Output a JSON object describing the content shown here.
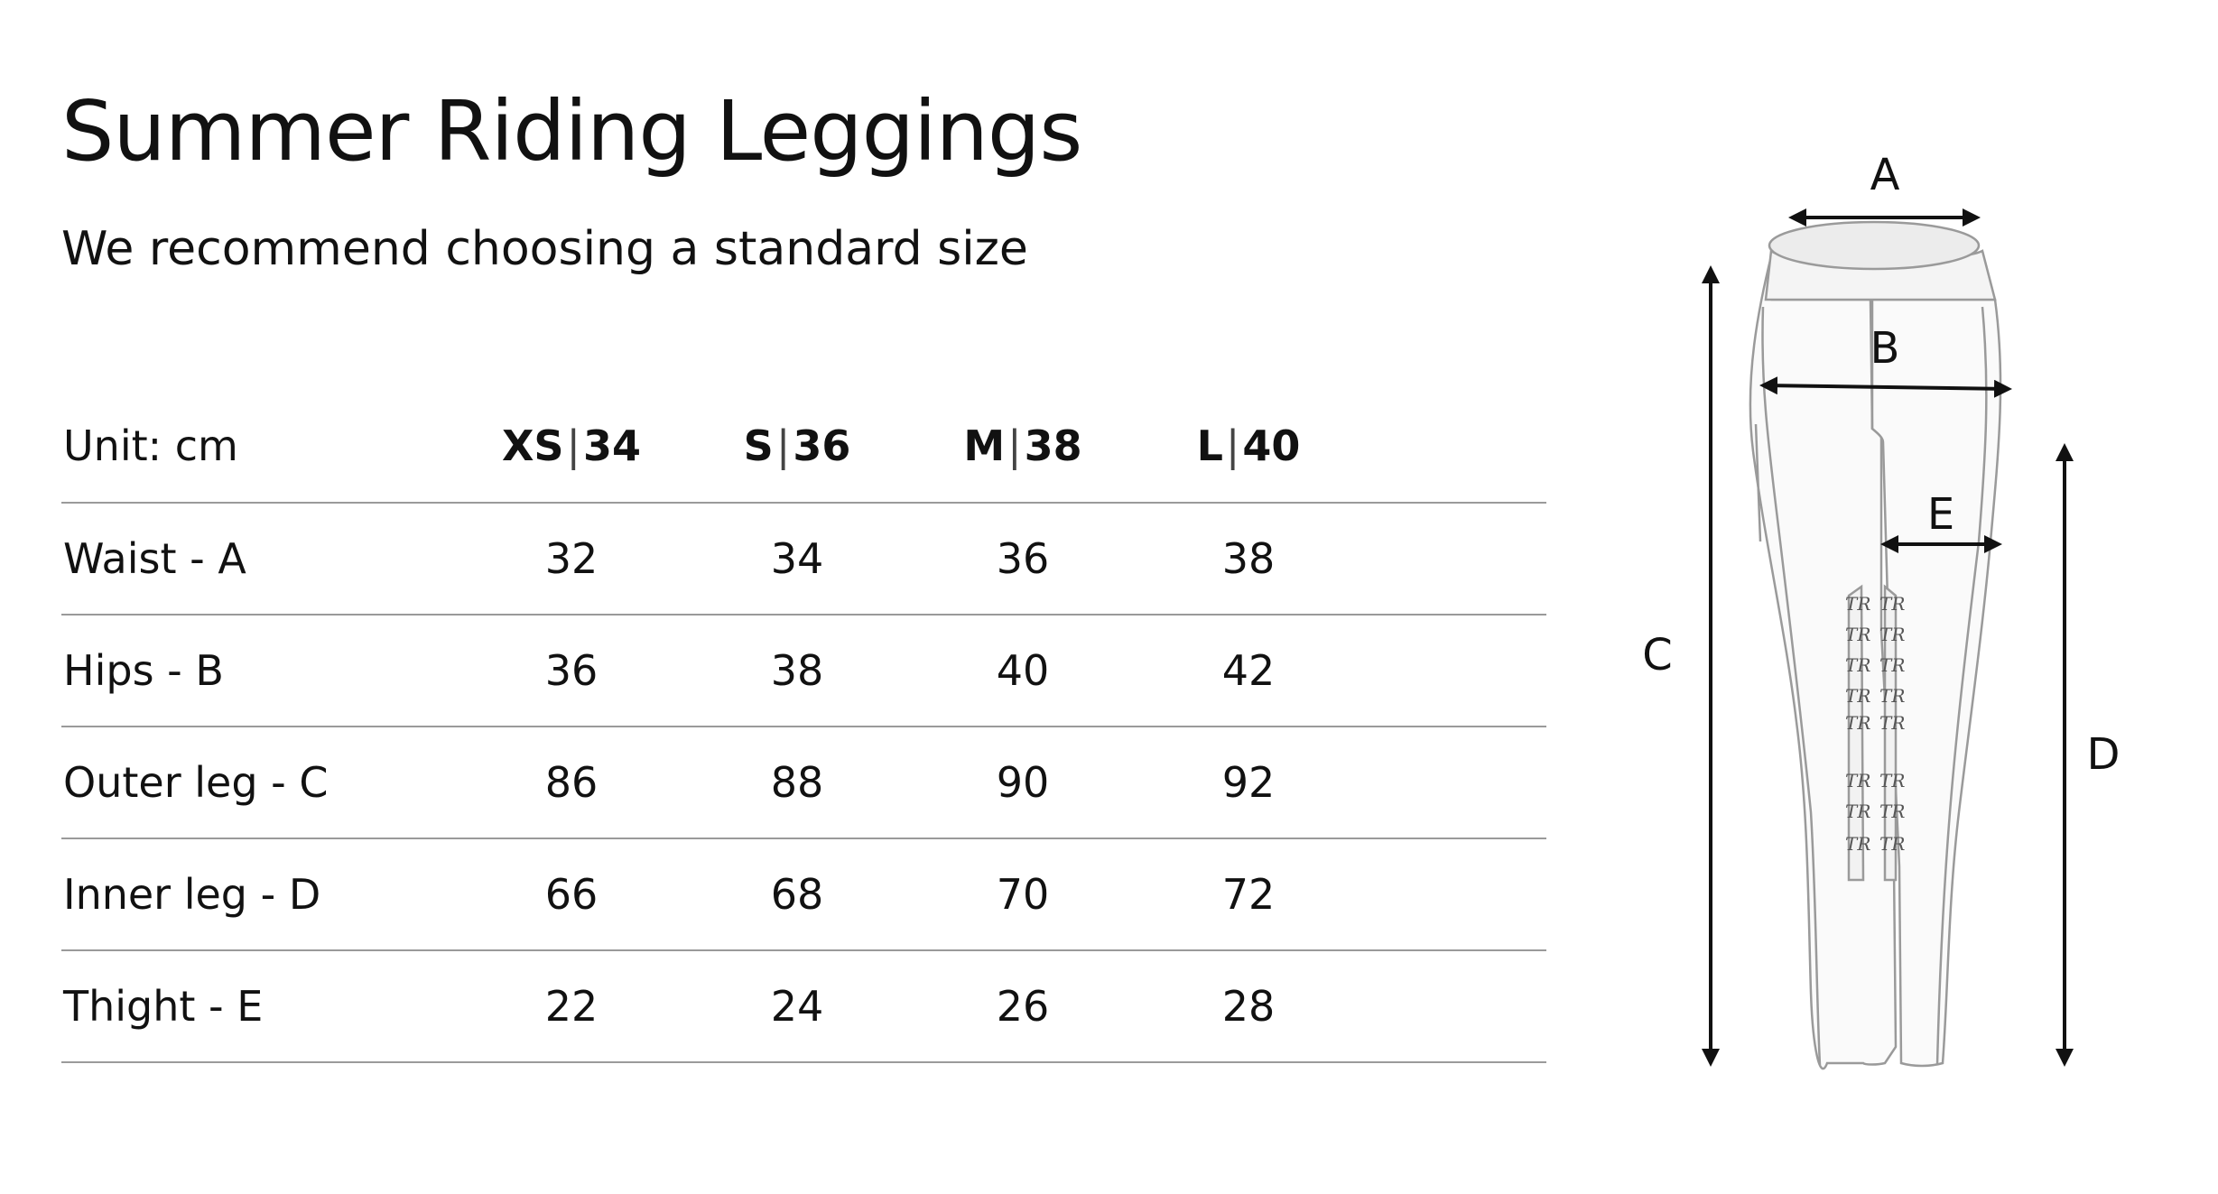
{
  "title": "Summer Riding Leggings",
  "subtitle": "We recommend choosing a standard size",
  "table": {
    "unit_label": "Unit: cm",
    "sizes": [
      {
        "letter": "XS",
        "sep": "|",
        "number": "34"
      },
      {
        "letter": "S",
        "sep": "|",
        "number": "36"
      },
      {
        "letter": "M",
        "sep": "|",
        "number": "38"
      },
      {
        "letter": "L",
        "sep": "|",
        "number": "40"
      }
    ],
    "rows": [
      {
        "label": "Waist - A",
        "values": [
          "32",
          "34",
          "36",
          "38"
        ]
      },
      {
        "label": "Hips - B",
        "values": [
          "36",
          "38",
          "40",
          "42"
        ]
      },
      {
        "label": "Outer leg - C",
        "values": [
          "86",
          "88",
          "90",
          "92"
        ]
      },
      {
        "label": "Inner leg - D",
        "values": [
          "66",
          "68",
          "70",
          "72"
        ]
      },
      {
        "label": "Thight - E",
        "values": [
          "22",
          "24",
          "26",
          "28"
        ]
      }
    ]
  },
  "diagram": {
    "labels": {
      "a": "A",
      "b": "B",
      "c": "C",
      "d": "D",
      "e": "E"
    },
    "logo_mark": "TR"
  }
}
